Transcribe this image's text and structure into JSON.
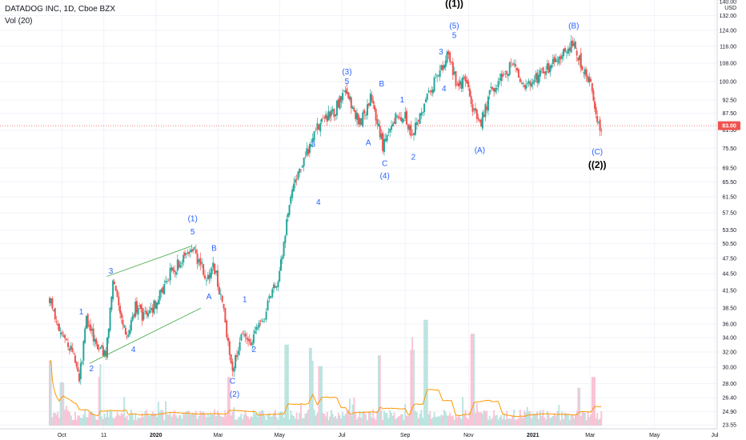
{
  "header": {
    "symbol_line": "DATADOG INC, 1D, Cboe BZX",
    "volume_line": "Vol (20)"
  },
  "price_axis": {
    "currency": "USD",
    "ticks": [
      "140.00",
      "132.00",
      "124.00",
      "116.00",
      "108.00",
      "100.00",
      "92.50",
      "87.50",
      "81.50",
      "75.50",
      "69.50",
      "65.50",
      "61.50",
      "57.50",
      "53.50",
      "50.50",
      "47.50",
      "44.50",
      "41.50",
      "38.50",
      "36.00",
      "34.00",
      "32.00",
      "30.00",
      "28.00",
      "26.40",
      "24.90",
      "23.55"
    ],
    "current_price": "83.00"
  },
  "time_axis": {
    "ticks": [
      "Oct",
      "11",
      "2020",
      "Mar",
      "May",
      "Jul",
      "Sep",
      "Nov",
      "2021",
      "Mar",
      "May",
      "Jul"
    ]
  },
  "colors": {
    "up": "#26a69a",
    "down": "#ef5350",
    "wave_label": "#2962ff",
    "volume_ma": "#ff9800",
    "trendline": "#4caf50",
    "price_line": "#ef5350"
  },
  "chart_data": {
    "type": "candlestick",
    "title": "DATADOG INC, 1D, Cboe BZX",
    "x_range": [
      "2019-09-19",
      "2021-07-01"
    ],
    "y_range": [
      23.55,
      140.0
    ],
    "y_scale": "log",
    "close_path": [
      {
        "date": "2019-09-19",
        "close": 40.0
      },
      {
        "date": "2019-10-01",
        "close": 34.0
      },
      {
        "date": "2019-10-10",
        "close": 32.5
      },
      {
        "date": "2019-10-18",
        "close": 28.5
      },
      {
        "date": "2019-10-25",
        "close": 36.5
      },
      {
        "date": "2019-11-05",
        "close": 33.0
      },
      {
        "date": "2019-11-13",
        "close": 31.5
      },
      {
        "date": "2019-11-20",
        "close": 42.5
      },
      {
        "date": "2019-11-27",
        "close": 38.0
      },
      {
        "date": "2019-12-05",
        "close": 34.0
      },
      {
        "date": "2019-12-12",
        "close": 39.0
      },
      {
        "date": "2019-12-20",
        "close": 37.0
      },
      {
        "date": "2020-01-02",
        "close": 39.5
      },
      {
        "date": "2020-01-15",
        "close": 44.5
      },
      {
        "date": "2020-01-28",
        "close": 47.5
      },
      {
        "date": "2020-02-05",
        "close": 49.5
      },
      {
        "date": "2020-02-12",
        "close": 47.0
      },
      {
        "date": "2020-02-21",
        "close": 43.5
      },
      {
        "date": "2020-02-26",
        "close": 46.5
      },
      {
        "date": "2020-03-06",
        "close": 39.5
      },
      {
        "date": "2020-03-16",
        "close": 29.5
      },
      {
        "date": "2020-03-26",
        "close": 35.0
      },
      {
        "date": "2020-04-03",
        "close": 33.5
      },
      {
        "date": "2020-04-15",
        "close": 37.0
      },
      {
        "date": "2020-04-24",
        "close": 41.0
      },
      {
        "date": "2020-05-01",
        "close": 44.5
      },
      {
        "date": "2020-05-08",
        "close": 56.0
      },
      {
        "date": "2020-05-12",
        "close": 63.0
      },
      {
        "date": "2020-05-15",
        "close": 65.0
      },
      {
        "date": "2020-05-22",
        "close": 70.0
      },
      {
        "date": "2020-06-01",
        "close": 77.0
      },
      {
        "date": "2020-06-10",
        "close": 84.5
      },
      {
        "date": "2020-06-22",
        "close": 87.5
      },
      {
        "date": "2020-07-06",
        "close": 96.5
      },
      {
        "date": "2020-07-13",
        "close": 86.5
      },
      {
        "date": "2020-07-20",
        "close": 84.5
      },
      {
        "date": "2020-07-29",
        "close": 93.0
      },
      {
        "date": "2020-08-06",
        "close": 82.5
      },
      {
        "date": "2020-08-10",
        "close": 76.5
      },
      {
        "date": "2020-08-20",
        "close": 85.0
      },
      {
        "date": "2020-09-01",
        "close": 86.5
      },
      {
        "date": "2020-09-08",
        "close": 79.0
      },
      {
        "date": "2020-09-14",
        "close": 85.5
      },
      {
        "date": "2020-09-24",
        "close": 96.0
      },
      {
        "date": "2020-10-05",
        "close": 104.0
      },
      {
        "date": "2020-10-12",
        "close": 112.0
      },
      {
        "date": "2020-10-22",
        "close": 98.0
      },
      {
        "date": "2020-10-30",
        "close": 100.0
      },
      {
        "date": "2020-11-06",
        "close": 90.0
      },
      {
        "date": "2020-11-13",
        "close": 83.0
      },
      {
        "date": "2020-11-24",
        "close": 96.0
      },
      {
        "date": "2020-12-04",
        "close": 102.0
      },
      {
        "date": "2020-12-15",
        "close": 108.0
      },
      {
        "date": "2020-12-24",
        "close": 98.0
      },
      {
        "date": "2021-01-04",
        "close": 100.0
      },
      {
        "date": "2021-01-14",
        "close": 104.0
      },
      {
        "date": "2021-01-25",
        "close": 108.0
      },
      {
        "date": "2021-02-03",
        "close": 112.0
      },
      {
        "date": "2021-02-12",
        "close": 117.0
      },
      {
        "date": "2021-02-24",
        "close": 104.0
      },
      {
        "date": "2021-03-03",
        "close": 97.0
      },
      {
        "date": "2021-03-08",
        "close": 83.5
      },
      {
        "date": "2021-03-12",
        "close": 83.0
      }
    ],
    "wave_labels": [
      {
        "text": "1",
        "date": "2019-10-20",
        "price": 37.5
      },
      {
        "text": "2",
        "date": "2019-10-30",
        "price": 29.5
      },
      {
        "text": "3",
        "date": "2019-11-18",
        "price": 44.5
      },
      {
        "text": "4",
        "date": "2019-12-10",
        "price": 32.0
      },
      {
        "text": "(1)",
        "date": "2020-02-06",
        "price": 55.5
      },
      {
        "text": "5",
        "date": "2020-02-06",
        "price": 52.5
      },
      {
        "text": "B",
        "date": "2020-02-27",
        "price": 49.0
      },
      {
        "text": "A",
        "date": "2020-02-22",
        "price": 40.0
      },
      {
        "text": "C",
        "date": "2020-03-16",
        "price": 28.0
      },
      {
        "text": "(2)",
        "date": "2020-03-18",
        "price": 26.5
      },
      {
        "text": "1",
        "date": "2020-03-28",
        "price": 39.5
      },
      {
        "text": "2",
        "date": "2020-04-06",
        "price": 32.0
      },
      {
        "text": "3",
        "date": "2020-06-03",
        "price": 76.0
      },
      {
        "text": "4",
        "date": "2020-06-08",
        "price": 59.5
      },
      {
        "text": "(3)",
        "date": "2020-07-06",
        "price": 103.0
      },
      {
        "text": "5",
        "date": "2020-07-06",
        "price": 99.0
      },
      {
        "text": "A",
        "date": "2020-07-27",
        "price": 76.5
      },
      {
        "text": "B",
        "date": "2020-08-09",
        "price": 98.0
      },
      {
        "text": "C",
        "date": "2020-08-12",
        "price": 70.0
      },
      {
        "text": "(4)",
        "date": "2020-08-12",
        "price": 66.5
      },
      {
        "text": "1",
        "date": "2020-08-29",
        "price": 91.5
      },
      {
        "text": "2",
        "date": "2020-09-09",
        "price": 72.0
      },
      {
        "text": "3",
        "date": "2020-10-06",
        "price": 112.0
      },
      {
        "text": "4",
        "date": "2020-10-09",
        "price": 96.0
      },
      {
        "text": "((1))",
        "date": "2020-10-19",
        "price": 137.0
      },
      {
        "text": "(5)",
        "date": "2020-10-19",
        "price": 125.0
      },
      {
        "text": "5",
        "date": "2020-10-19",
        "price": 120.0
      },
      {
        "text": "(A)",
        "date": "2020-11-13",
        "price": 74.0
      },
      {
        "text": "(B)",
        "date": "2021-02-13",
        "price": 125.0
      },
      {
        "text": "(C)",
        "date": "2021-03-08",
        "price": 73.5
      },
      {
        "text": "((2))",
        "date": "2021-03-08",
        "price": 69.5
      }
    ],
    "trendlines": [
      {
        "from": {
          "date": "2019-11-14",
          "price": 44.0
        },
        "to": {
          "date": "2020-02-05",
          "price": 50.0
        }
      },
      {
        "from": {
          "date": "2019-10-28",
          "price": 30.5
        },
        "to": {
          "date": "2020-02-14",
          "price": 38.5
        }
      }
    ],
    "volume_spikes": [
      {
        "date": "2019-09-20",
        "level": 0.6
      },
      {
        "date": "2019-10-01",
        "level": 0.4
      },
      {
        "date": "2019-11-07",
        "level": 0.45
      },
      {
        "date": "2020-03-12",
        "level": 0.45
      },
      {
        "date": "2020-05-08",
        "level": 0.75
      },
      {
        "date": "2020-06-01",
        "level": 0.6
      },
      {
        "date": "2020-06-10",
        "level": 0.55
      },
      {
        "date": "2020-08-07",
        "level": 0.65
      },
      {
        "date": "2020-09-08",
        "level": 0.7
      },
      {
        "date": "2020-09-21",
        "level": 0.98
      },
      {
        "date": "2020-11-06",
        "level": 0.85
      },
      {
        "date": "2021-02-18",
        "level": 0.35
      },
      {
        "date": "2021-03-04",
        "level": 0.45
      }
    ]
  }
}
